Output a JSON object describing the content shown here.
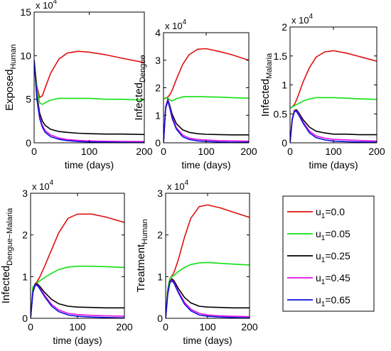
{
  "legend": {
    "entries": [
      {
        "label": "u",
        "sub": "1",
        "value": "=0.0",
        "color": "#e01010"
      },
      {
        "label": "u",
        "sub": "1",
        "value": "=0.05",
        "color": "#10e010"
      },
      {
        "label": "u",
        "sub": "1",
        "value": "=0.25",
        "color": "#000000"
      },
      {
        "label": "u",
        "sub": "1",
        "value": "=0.45",
        "color": "#e010e0"
      },
      {
        "label": "u",
        "sub": "1",
        "value": "=0.65",
        "color": "#1010e0"
      }
    ]
  },
  "chart_data": [
    {
      "type": "line",
      "ylabel": "Exposed",
      "ylabel_sub": "Human",
      "xlabel": "time (days)",
      "multiplier": "x 10",
      "multiplier_exp": "4",
      "xlim": [
        0,
        200
      ],
      "ylim": [
        0,
        15
      ],
      "xticks": [
        0,
        100,
        200
      ],
      "yticks": [
        0,
        5,
        10,
        15
      ],
      "series": [
        {
          "name": "u1=0.0",
          "color": "#e01010",
          "x": [
            0,
            5,
            10,
            15,
            20,
            30,
            45,
            60,
            80,
            100,
            130,
            160,
            200
          ],
          "y": [
            9.5,
            6.5,
            5.2,
            5.4,
            6.3,
            8.0,
            9.6,
            10.3,
            10.5,
            10.4,
            10.1,
            9.7,
            9.2
          ]
        },
        {
          "name": "u1=0.05",
          "color": "#10e010",
          "x": [
            0,
            5,
            10,
            15,
            20,
            30,
            45,
            60,
            80,
            100,
            130,
            160,
            200
          ],
          "y": [
            9.5,
            6.2,
            4.6,
            4.4,
            4.6,
            4.9,
            5.1,
            5.1,
            5.1,
            5.1,
            5.0,
            5.0,
            4.9
          ]
        },
        {
          "name": "u1=0.25",
          "color": "#000000",
          "x": [
            0,
            5,
            10,
            15,
            20,
            30,
            45,
            60,
            80,
            100,
            130,
            160,
            200
          ],
          "y": [
            9.5,
            5.5,
            3.4,
            2.5,
            2.0,
            1.55,
            1.3,
            1.2,
            1.1,
            1.05,
            1.0,
            1.0,
            0.95
          ]
        },
        {
          "name": "u1=0.45",
          "color": "#e010e0",
          "x": [
            0,
            5,
            10,
            15,
            20,
            30,
            45,
            60,
            80,
            100,
            130,
            160,
            200
          ],
          "y": [
            9.5,
            5.2,
            3.0,
            2.0,
            1.4,
            0.9,
            0.55,
            0.38,
            0.28,
            0.22,
            0.18,
            0.16,
            0.15
          ]
        },
        {
          "name": "u1=0.65",
          "color": "#1010e0",
          "x": [
            0,
            5,
            10,
            15,
            20,
            30,
            45,
            60,
            80,
            100,
            130,
            160,
            200
          ],
          "y": [
            9.5,
            5.0,
            2.8,
            1.8,
            1.2,
            0.7,
            0.4,
            0.25,
            0.15,
            0.1,
            0.07,
            0.05,
            0.04
          ]
        }
      ]
    },
    {
      "type": "line",
      "ylabel": "Infected",
      "ylabel_sub": "Dengue",
      "xlabel": "time (days)",
      "multiplier": "x 10",
      "multiplier_exp": "4",
      "xlim": [
        0,
        200
      ],
      "ylim": [
        0,
        4
      ],
      "xticks": [
        0,
        100,
        200
      ],
      "yticks": [
        0,
        1,
        2,
        3,
        4
      ],
      "series": [
        {
          "name": "u1=0.0",
          "color": "#e01010",
          "x": [
            0,
            5,
            10,
            15,
            20,
            30,
            45,
            60,
            80,
            100,
            130,
            160,
            200
          ],
          "y": [
            1.6,
            1.62,
            1.66,
            1.75,
            1.9,
            2.3,
            2.85,
            3.2,
            3.4,
            3.42,
            3.32,
            3.2,
            3.0
          ]
        },
        {
          "name": "u1=0.05",
          "color": "#10e010",
          "x": [
            0,
            5,
            10,
            15,
            20,
            30,
            45,
            60,
            80,
            100,
            130,
            160,
            200
          ],
          "y": [
            1.6,
            1.63,
            1.62,
            1.55,
            1.52,
            1.6,
            1.67,
            1.68,
            1.68,
            1.67,
            1.66,
            1.64,
            1.62
          ]
        },
        {
          "name": "u1=0.25",
          "color": "#000000",
          "x": [
            0,
            5,
            10,
            15,
            20,
            30,
            45,
            60,
            80,
            100,
            130,
            160,
            200
          ],
          "y": [
            0,
            1.3,
            1.58,
            1.35,
            1.05,
            0.7,
            0.47,
            0.38,
            0.33,
            0.31,
            0.3,
            0.29,
            0.29
          ]
        },
        {
          "name": "u1=0.45",
          "color": "#e010e0",
          "x": [
            0,
            5,
            10,
            15,
            20,
            30,
            45,
            60,
            80,
            100,
            130,
            160,
            200
          ],
          "y": [
            0,
            1.28,
            1.55,
            1.3,
            0.95,
            0.55,
            0.28,
            0.17,
            0.12,
            0.1,
            0.08,
            0.07,
            0.06
          ]
        },
        {
          "name": "u1=0.65",
          "color": "#1010e0",
          "x": [
            0,
            5,
            10,
            15,
            20,
            30,
            45,
            60,
            80,
            100,
            130,
            160,
            200
          ],
          "y": [
            0,
            1.25,
            1.52,
            1.25,
            0.9,
            0.5,
            0.22,
            0.12,
            0.07,
            0.05,
            0.03,
            0.02,
            0.02
          ]
        }
      ]
    },
    {
      "type": "line",
      "ylabel": "Infected",
      "ylabel_sub": "Malaria",
      "xlabel": "time (days)",
      "multiplier": "x 10",
      "multiplier_exp": "4",
      "xlim": [
        0,
        200
      ],
      "ylim": [
        0,
        2
      ],
      "xticks": [
        0,
        100,
        200
      ],
      "yticks": [
        0,
        0.5,
        1,
        1.5,
        2
      ],
      "series": [
        {
          "name": "u1=0.0",
          "color": "#e01010",
          "x": [
            0,
            5,
            10,
            15,
            20,
            30,
            45,
            60,
            80,
            100,
            130,
            160,
            200
          ],
          "y": [
            0.6,
            0.62,
            0.66,
            0.74,
            0.84,
            1.05,
            1.3,
            1.48,
            1.57,
            1.59,
            1.55,
            1.49,
            1.41
          ]
        },
        {
          "name": "u1=0.05",
          "color": "#10e010",
          "x": [
            0,
            5,
            10,
            15,
            20,
            30,
            45,
            60,
            80,
            100,
            130,
            160,
            200
          ],
          "y": [
            0.6,
            0.62,
            0.64,
            0.66,
            0.68,
            0.72,
            0.76,
            0.78,
            0.78,
            0.78,
            0.77,
            0.76,
            0.75
          ]
        },
        {
          "name": "u1=0.25",
          "color": "#000000",
          "x": [
            0,
            5,
            10,
            15,
            20,
            30,
            45,
            60,
            80,
            100,
            130,
            160,
            200
          ],
          "y": [
            0.0,
            0.42,
            0.56,
            0.57,
            0.52,
            0.4,
            0.27,
            0.2,
            0.17,
            0.15,
            0.15,
            0.14,
            0.14
          ]
        },
        {
          "name": "u1=0.45",
          "color": "#e010e0",
          "x": [
            0,
            5,
            10,
            15,
            20,
            30,
            45,
            60,
            80,
            100,
            130,
            160,
            200
          ],
          "y": [
            0.0,
            0.41,
            0.55,
            0.55,
            0.5,
            0.36,
            0.2,
            0.12,
            0.08,
            0.06,
            0.05,
            0.04,
            0.03
          ]
        },
        {
          "name": "u1=0.65",
          "color": "#1010e0",
          "x": [
            0,
            5,
            10,
            15,
            20,
            30,
            45,
            60,
            80,
            100,
            130,
            160,
            200
          ],
          "y": [
            0.0,
            0.4,
            0.54,
            0.54,
            0.48,
            0.34,
            0.17,
            0.09,
            0.05,
            0.03,
            0.02,
            0.015,
            0.01
          ]
        }
      ]
    },
    {
      "type": "line",
      "ylabel": "Infected",
      "ylabel_sub": "Dengue−Malaria",
      "xlabel": "time (days)",
      "multiplier": "x 10",
      "multiplier_exp": "4",
      "xlim": [
        0,
        200
      ],
      "ylim": [
        0,
        3
      ],
      "xticks": [
        0,
        100,
        200
      ],
      "yticks": [
        0,
        1,
        2,
        3
      ],
      "series": [
        {
          "name": "u1=0.0",
          "color": "#e01010",
          "x": [
            0,
            5,
            10,
            15,
            20,
            30,
            45,
            60,
            80,
            100,
            130,
            160,
            200
          ],
          "y": [
            0,
            0.75,
            0.82,
            0.9,
            1.0,
            1.25,
            1.65,
            2.05,
            2.4,
            2.5,
            2.5,
            2.43,
            2.3
          ]
        },
        {
          "name": "u1=0.05",
          "color": "#10e010",
          "x": [
            0,
            5,
            10,
            15,
            20,
            30,
            45,
            60,
            80,
            100,
            130,
            160,
            200
          ],
          "y": [
            0,
            0.75,
            0.82,
            0.86,
            0.9,
            0.98,
            1.08,
            1.17,
            1.23,
            1.25,
            1.25,
            1.24,
            1.22
          ]
        },
        {
          "name": "u1=0.25",
          "color": "#000000",
          "x": [
            0,
            5,
            10,
            15,
            20,
            30,
            45,
            60,
            80,
            100,
            130,
            160,
            200
          ],
          "y": [
            0,
            0.65,
            0.83,
            0.82,
            0.76,
            0.62,
            0.45,
            0.35,
            0.29,
            0.27,
            0.26,
            0.25,
            0.25
          ]
        },
        {
          "name": "u1=0.45",
          "color": "#e010e0",
          "x": [
            0,
            5,
            10,
            15,
            20,
            30,
            45,
            60,
            80,
            100,
            130,
            160,
            200
          ],
          "y": [
            0,
            0.63,
            0.81,
            0.79,
            0.72,
            0.55,
            0.33,
            0.2,
            0.12,
            0.09,
            0.07,
            0.06,
            0.05
          ]
        },
        {
          "name": "u1=0.65",
          "color": "#1010e0",
          "x": [
            0,
            5,
            10,
            15,
            20,
            30,
            45,
            60,
            80,
            100,
            130,
            160,
            200
          ],
          "y": [
            0,
            0.62,
            0.8,
            0.78,
            0.7,
            0.52,
            0.29,
            0.16,
            0.08,
            0.05,
            0.03,
            0.02,
            0.01
          ]
        }
      ]
    },
    {
      "type": "line",
      "ylabel": "Treatment",
      "ylabel_sub": "Human",
      "xlabel": "time (days)",
      "multiplier": "x 10",
      "multiplier_exp": "4",
      "xlim": [
        0,
        200
      ],
      "ylim": [
        0,
        3
      ],
      "xticks": [
        0,
        100,
        200
      ],
      "yticks": [
        0,
        1,
        2,
        3
      ],
      "series": [
        {
          "name": "u1=0.0",
          "color": "#e01010",
          "x": [
            0,
            5,
            10,
            15,
            20,
            30,
            45,
            60,
            80,
            100,
            130,
            160,
            200
          ],
          "y": [
            0,
            0.7,
            0.95,
            1.02,
            1.1,
            1.4,
            1.95,
            2.4,
            2.68,
            2.72,
            2.65,
            2.55,
            2.42
          ]
        },
        {
          "name": "u1=0.05",
          "color": "#10e010",
          "x": [
            0,
            5,
            10,
            15,
            20,
            30,
            45,
            60,
            80,
            100,
            130,
            160,
            200
          ],
          "y": [
            0,
            0.7,
            0.95,
            1.0,
            1.03,
            1.12,
            1.22,
            1.29,
            1.33,
            1.34,
            1.32,
            1.3,
            1.28
          ]
        },
        {
          "name": "u1=0.25",
          "color": "#000000",
          "x": [
            0,
            5,
            10,
            15,
            20,
            30,
            45,
            60,
            80,
            100,
            130,
            160,
            200
          ],
          "y": [
            0,
            0.6,
            0.88,
            0.95,
            0.9,
            0.72,
            0.5,
            0.37,
            0.29,
            0.27,
            0.26,
            0.25,
            0.25
          ]
        },
        {
          "name": "u1=0.45",
          "color": "#e010e0",
          "x": [
            0,
            5,
            10,
            15,
            20,
            30,
            45,
            60,
            80,
            100,
            130,
            160,
            200
          ],
          "y": [
            0,
            0.58,
            0.86,
            0.92,
            0.86,
            0.65,
            0.38,
            0.22,
            0.12,
            0.08,
            0.06,
            0.05,
            0.04
          ]
        },
        {
          "name": "u1=0.65",
          "color": "#1010e0",
          "x": [
            0,
            5,
            10,
            15,
            20,
            30,
            45,
            60,
            80,
            100,
            130,
            160,
            200
          ],
          "y": [
            0,
            0.57,
            0.85,
            0.9,
            0.84,
            0.62,
            0.34,
            0.18,
            0.08,
            0.05,
            0.03,
            0.02,
            0.01
          ]
        }
      ]
    }
  ]
}
